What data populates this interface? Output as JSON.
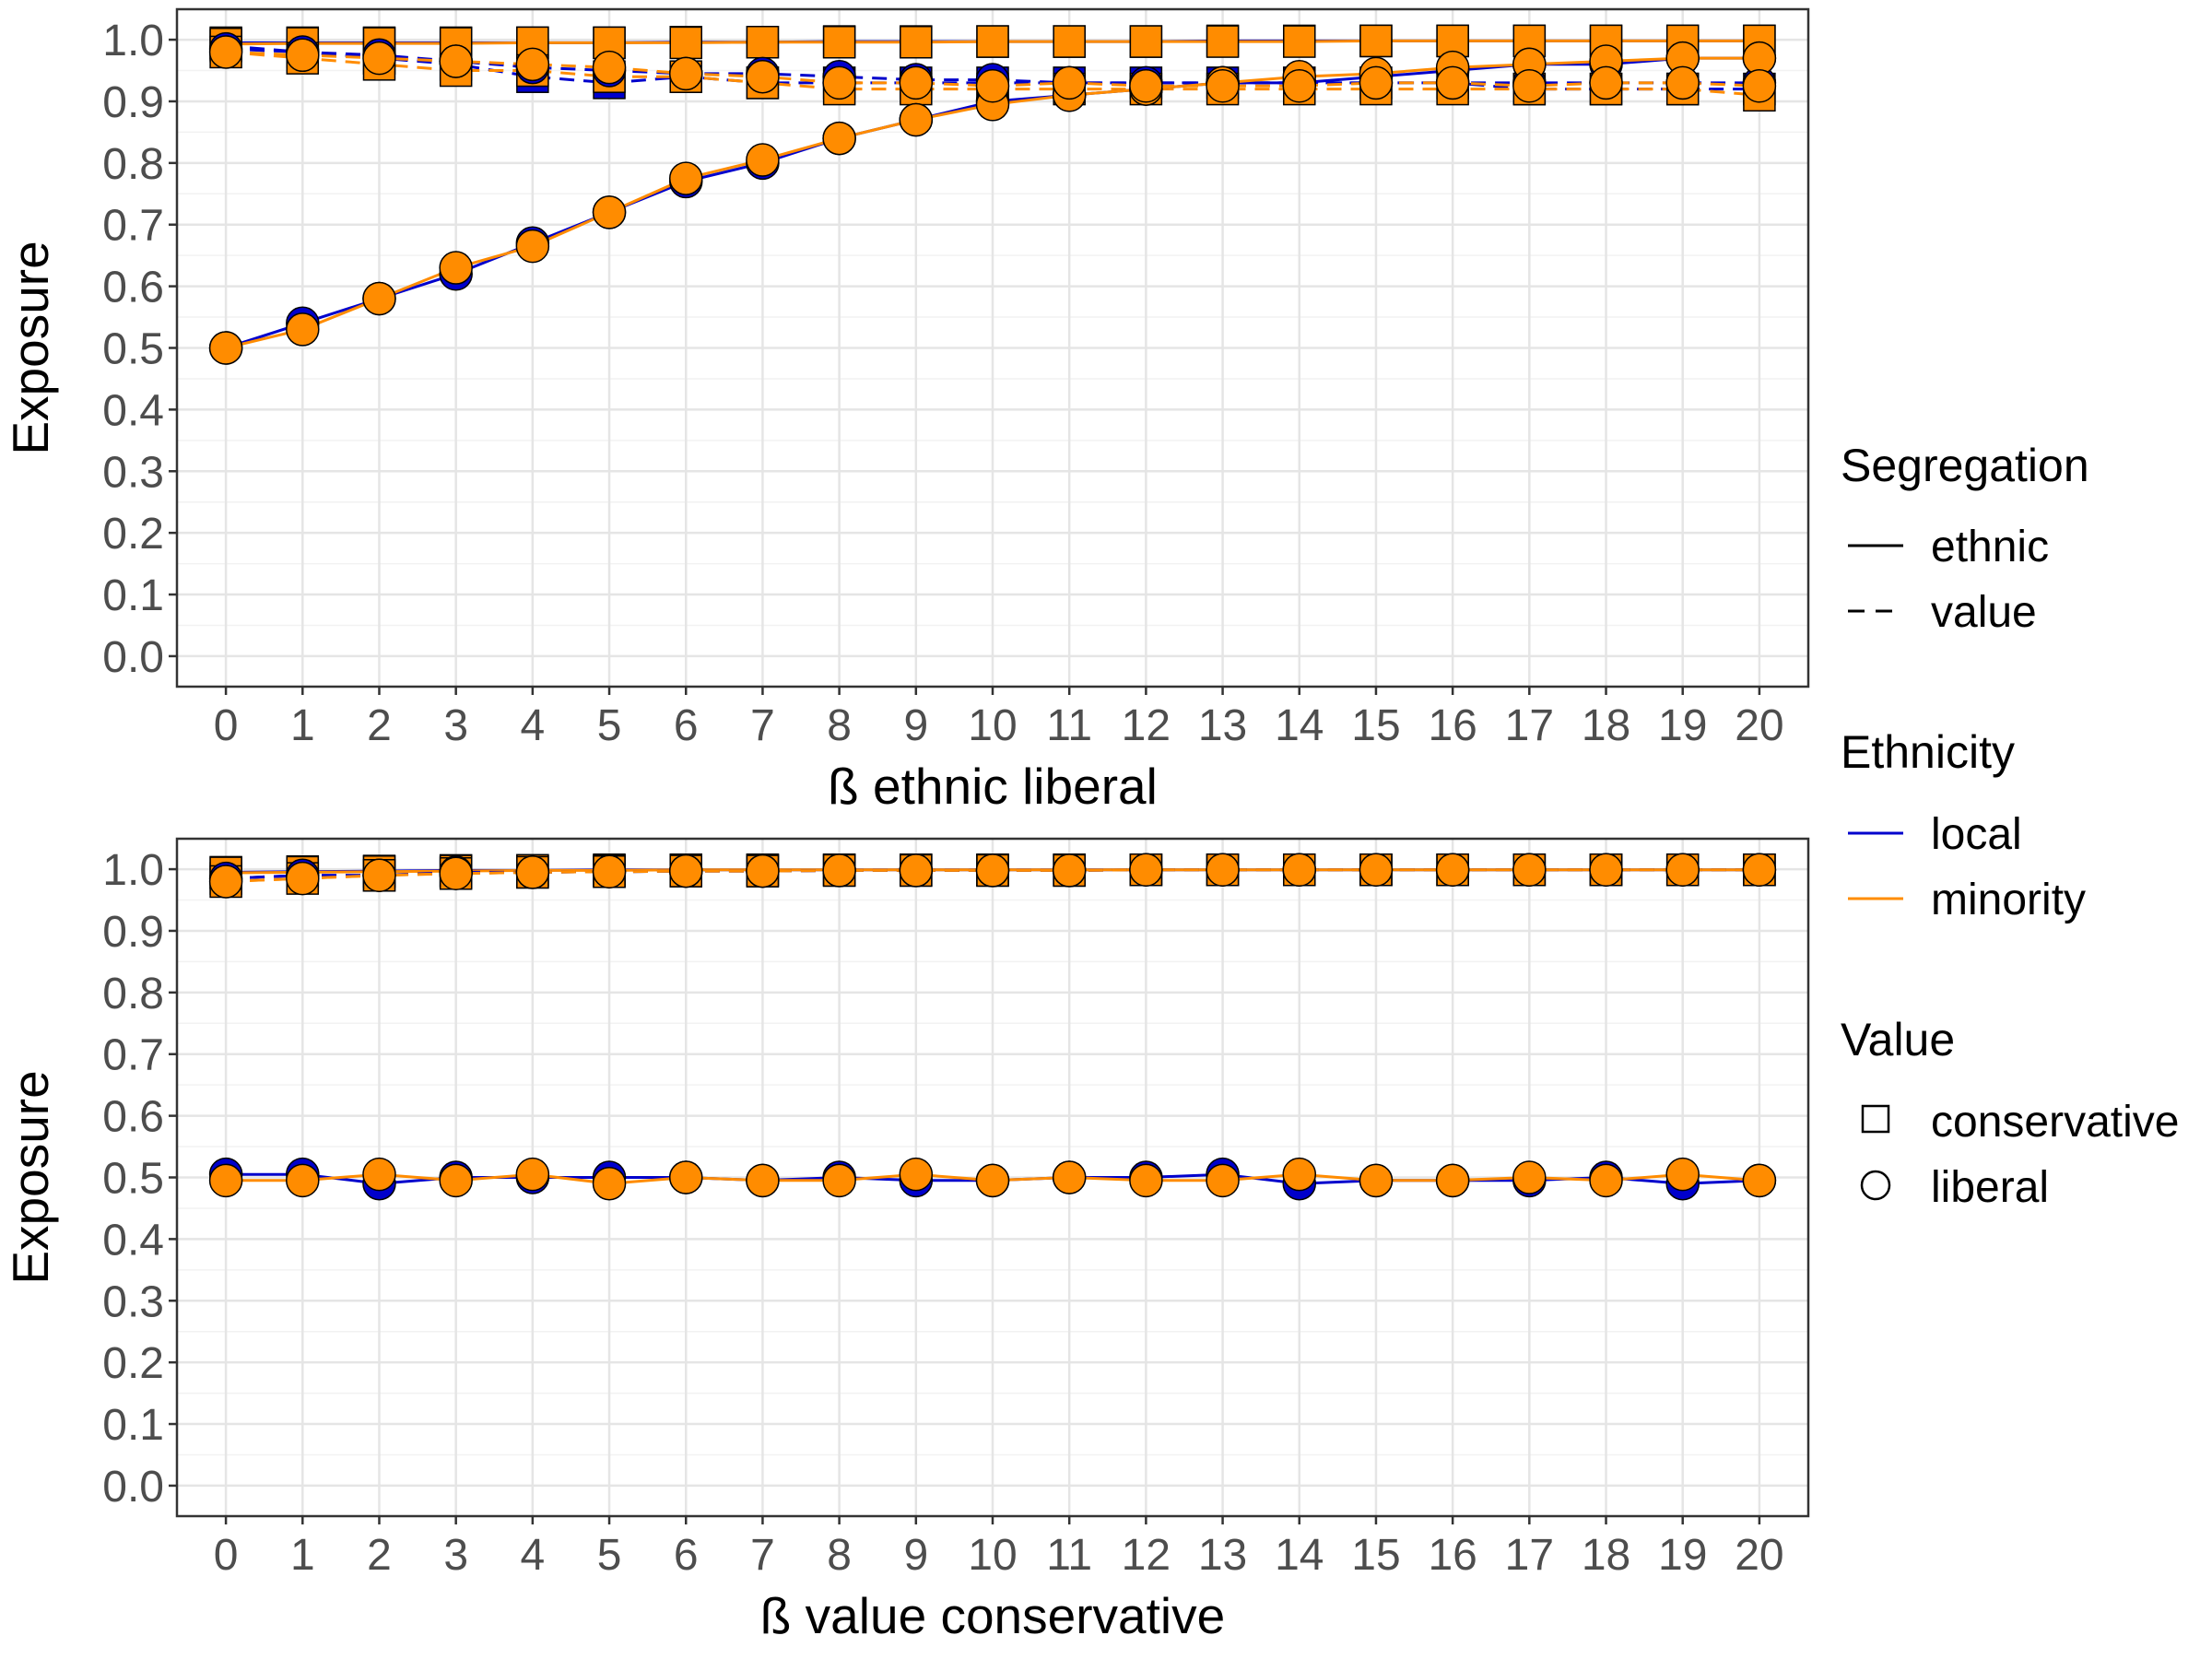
{
  "colors": {
    "local": "#0000cc",
    "minority": "#ff8c00",
    "point_outline": "#000000",
    "grid_major": "#e5e5e5",
    "grid_minor": "#f2f2f2",
    "panel_border": "#333333",
    "tick_text": "#4d4d4d"
  },
  "legend": {
    "position": "right",
    "segregation": {
      "title": "Segregation",
      "items": [
        {
          "label": "ethnic",
          "linetype": "solid"
        },
        {
          "label": "value",
          "linetype": "dashed"
        }
      ]
    },
    "ethnicity": {
      "title": "Ethnicity",
      "items": [
        {
          "label": "local",
          "color": "#0000cc"
        },
        {
          "label": "minority",
          "color": "#ff8c00"
        }
      ]
    },
    "value": {
      "title": "Value",
      "items": [
        {
          "label": "conservative",
          "shape": "square"
        },
        {
          "label": "liberal",
          "shape": "circle"
        }
      ]
    }
  },
  "chart_data": [
    {
      "type": "line",
      "xlabel": "ß ethnic liberal",
      "ylabel": "Exposure",
      "xlim": [
        0,
        20
      ],
      "ylim": [
        0,
        1
      ],
      "grid": true,
      "x": [
        0,
        1,
        2,
        3,
        4,
        5,
        6,
        7,
        8,
        9,
        10,
        11,
        12,
        13,
        14,
        15,
        16,
        17,
        18,
        19,
        20
      ],
      "x_tick_labels": [
        "0",
        "1",
        "2",
        "3",
        "4",
        "5",
        "6",
        "7",
        "8",
        "9",
        "10",
        "11",
        "12",
        "13",
        "14",
        "15",
        "16",
        "17",
        "18",
        "19",
        "20"
      ],
      "y_tick_labels": [
        "0.0",
        "0.1",
        "0.2",
        "0.3",
        "0.4",
        "0.5",
        "0.6",
        "0.7",
        "0.8",
        "0.9",
        "1.0"
      ],
      "series": [
        {
          "segregation": "ethnic",
          "ethnicity": "local",
          "value": "conservative",
          "values": [
            0.995,
            0.995,
            0.995,
            0.995,
            0.995,
            0.995,
            0.996,
            0.996,
            0.997,
            0.997,
            0.997,
            0.997,
            0.997,
            0.998,
            0.998,
            0.998,
            0.998,
            0.998,
            0.998,
            0.998,
            0.998
          ]
        },
        {
          "segregation": "ethnic",
          "ethnicity": "minority",
          "value": "conservative",
          "values": [
            0.993,
            0.994,
            0.994,
            0.994,
            0.995,
            0.995,
            0.995,
            0.996,
            0.996,
            0.996,
            0.997,
            0.997,
            0.997,
            0.997,
            0.997,
            0.998,
            0.998,
            0.998,
            0.998,
            0.998,
            0.998
          ]
        },
        {
          "segregation": "ethnic",
          "ethnicity": "local",
          "value": "liberal",
          "values": [
            0.5,
            0.54,
            0.58,
            0.62,
            0.67,
            0.72,
            0.77,
            0.8,
            0.84,
            0.87,
            0.9,
            0.91,
            0.92,
            0.93,
            0.93,
            0.94,
            0.95,
            0.96,
            0.96,
            0.97,
            0.97
          ]
        },
        {
          "segregation": "ethnic",
          "ethnicity": "minority",
          "value": "liberal",
          "values": [
            0.5,
            0.53,
            0.58,
            0.63,
            0.665,
            0.72,
            0.775,
            0.805,
            0.84,
            0.87,
            0.895,
            0.91,
            0.92,
            0.93,
            0.94,
            0.945,
            0.955,
            0.96,
            0.965,
            0.97,
            0.97
          ]
        },
        {
          "segregation": "value",
          "ethnicity": "local",
          "value": "conservative",
          "values": [
            0.99,
            0.98,
            0.97,
            0.96,
            0.94,
            0.93,
            0.94,
            0.93,
            0.93,
            0.93,
            0.93,
            0.93,
            0.93,
            0.93,
            0.93,
            0.93,
            0.93,
            0.92,
            0.92,
            0.92,
            0.92
          ]
        },
        {
          "segregation": "value",
          "ethnicity": "minority",
          "value": "conservative",
          "values": [
            0.98,
            0.97,
            0.96,
            0.95,
            0.95,
            0.94,
            0.94,
            0.93,
            0.92,
            0.92,
            0.92,
            0.92,
            0.92,
            0.92,
            0.92,
            0.92,
            0.92,
            0.92,
            0.92,
            0.92,
            0.91
          ]
        },
        {
          "segregation": "value",
          "ethnicity": "local",
          "value": "liberal",
          "values": [
            0.985,
            0.98,
            0.975,
            0.965,
            0.955,
            0.95,
            0.945,
            0.945,
            0.94,
            0.935,
            0.935,
            0.93,
            0.93,
            0.93,
            0.93,
            0.93,
            0.93,
            0.93,
            0.93,
            0.93,
            0.93
          ]
        },
        {
          "segregation": "value",
          "ethnicity": "minority",
          "value": "liberal",
          "values": [
            0.98,
            0.975,
            0.97,
            0.965,
            0.96,
            0.955,
            0.945,
            0.94,
            0.93,
            0.93,
            0.925,
            0.93,
            0.925,
            0.925,
            0.925,
            0.93,
            0.93,
            0.925,
            0.93,
            0.93,
            0.925
          ]
        }
      ]
    },
    {
      "type": "line",
      "xlabel": "ß value conservative",
      "ylabel": "Exposure",
      "xlim": [
        0,
        20
      ],
      "ylim": [
        0,
        1
      ],
      "grid": true,
      "x": [
        0,
        1,
        2,
        3,
        4,
        5,
        6,
        7,
        8,
        9,
        10,
        11,
        12,
        13,
        14,
        15,
        16,
        17,
        18,
        19,
        20
      ],
      "x_tick_labels": [
        "0",
        "1",
        "2",
        "3",
        "4",
        "5",
        "6",
        "7",
        "8",
        "9",
        "10",
        "11",
        "12",
        "13",
        "14",
        "15",
        "16",
        "17",
        "18",
        "19",
        "20"
      ],
      "y_tick_labels": [
        "0.0",
        "0.1",
        "0.2",
        "0.3",
        "0.4",
        "0.5",
        "0.6",
        "0.7",
        "0.8",
        "0.9",
        "1.0"
      ],
      "series": [
        {
          "segregation": "ethnic",
          "ethnicity": "local",
          "value": "conservative",
          "values": [
            0.995,
            0.996,
            0.997,
            0.998,
            0.998,
            0.999,
            0.999,
            0.999,
            0.999,
            0.999,
            0.999,
            0.999,
            0.999,
            0.999,
            0.999,
            0.999,
            0.999,
            0.999,
            0.999,
            0.999,
            0.999
          ]
        },
        {
          "segregation": "ethnic",
          "ethnicity": "minority",
          "value": "conservative",
          "values": [
            0.994,
            0.995,
            0.996,
            0.997,
            0.998,
            0.998,
            0.999,
            0.999,
            0.999,
            0.999,
            0.999,
            0.999,
            0.999,
            0.999,
            0.999,
            0.999,
            0.999,
            0.999,
            0.999,
            0.999,
            0.999
          ]
        },
        {
          "segregation": "ethnic",
          "ethnicity": "local",
          "value": "liberal",
          "values": [
            0.505,
            0.505,
            0.49,
            0.5,
            0.5,
            0.5,
            0.5,
            0.495,
            0.5,
            0.495,
            0.495,
            0.5,
            0.5,
            0.505,
            0.49,
            0.495,
            0.495,
            0.495,
            0.5,
            0.49,
            0.495
          ]
        },
        {
          "segregation": "ethnic",
          "ethnicity": "minority",
          "value": "liberal",
          "values": [
            0.495,
            0.495,
            0.505,
            0.495,
            0.505,
            0.49,
            0.5,
            0.495,
            0.495,
            0.505,
            0.495,
            0.5,
            0.495,
            0.495,
            0.505,
            0.495,
            0.495,
            0.5,
            0.495,
            0.505,
            0.495
          ]
        },
        {
          "segregation": "value",
          "ethnicity": "local",
          "value": "conservative",
          "values": [
            0.985,
            0.99,
            0.99,
            0.995,
            0.995,
            0.996,
            0.997,
            0.997,
            0.998,
            0.998,
            0.998,
            0.998,
            0.999,
            0.999,
            0.999,
            0.999,
            0.999,
            0.999,
            0.999,
            0.999,
            0.999
          ]
        },
        {
          "segregation": "value",
          "ethnicity": "minority",
          "value": "conservative",
          "values": [
            0.98,
            0.985,
            0.99,
            0.993,
            0.995,
            0.996,
            0.997,
            0.997,
            0.998,
            0.998,
            0.998,
            0.998,
            0.999,
            0.999,
            0.999,
            0.999,
            0.999,
            0.999,
            0.999,
            0.999,
            0.999
          ]
        },
        {
          "segregation": "value",
          "ethnicity": "local",
          "value": "liberal",
          "values": [
            0.985,
            0.99,
            0.99,
            0.995,
            0.995,
            0.996,
            0.997,
            0.997,
            0.998,
            0.998,
            0.998,
            0.998,
            0.999,
            0.999,
            0.999,
            0.999,
            0.999,
            0.999,
            0.999,
            0.999,
            0.999
          ]
        },
        {
          "segregation": "value",
          "ethnicity": "minority",
          "value": "liberal",
          "values": [
            0.98,
            0.985,
            0.99,
            0.993,
            0.995,
            0.996,
            0.997,
            0.997,
            0.998,
            0.998,
            0.998,
            0.998,
            0.999,
            0.999,
            0.999,
            0.999,
            0.999,
            0.999,
            0.999,
            0.999,
            0.999
          ]
        }
      ]
    }
  ]
}
